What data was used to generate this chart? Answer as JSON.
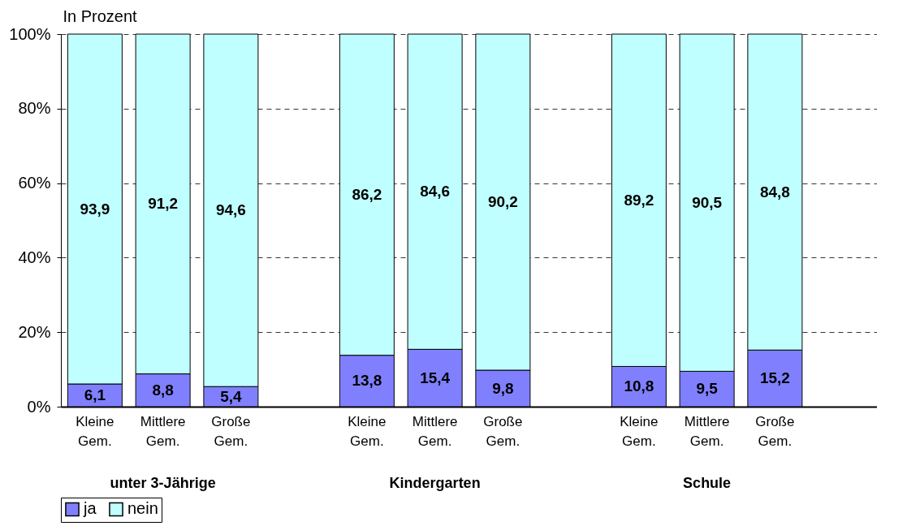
{
  "chart_data": {
    "type": "bar",
    "stacked": true,
    "ylabel": "In Prozent",
    "categories": [
      "Kleine Gem.",
      "Mittlere Gem.",
      "Große Gem.",
      null,
      "Kleine Gem.",
      "Mittlere Gem.",
      "Große Gem.",
      null,
      "Kleine Gem.",
      "Mittlere Gem.",
      "Große Gem.",
      null
    ],
    "series": [
      {
        "name": "ja",
        "color": "#8080ff",
        "values": [
          6.1,
          8.8,
          5.4,
          null,
          13.8,
          15.4,
          9.8,
          null,
          10.8,
          9.5,
          15.2,
          null
        ],
        "value_labels": [
          "6,1",
          "8,8",
          "5,4",
          null,
          "13,8",
          "15,4",
          "9,8",
          null,
          "10,8",
          "9,5",
          "15,2",
          null
        ]
      },
      {
        "name": "nein",
        "color": "#c0ffff",
        "values": [
          93.9,
          91.2,
          94.6,
          null,
          86.2,
          84.6,
          90.2,
          null,
          89.2,
          90.5,
          84.8,
          null
        ],
        "value_labels": [
          "93,9",
          "91,2",
          "94,6",
          null,
          "86,2",
          "84,6",
          "90,2",
          null,
          "89,2",
          "90,5",
          "84,8",
          null
        ]
      }
    ],
    "ylim": [
      0,
      100
    ],
    "yticks": [
      {
        "value": 0,
        "label": "0%"
      },
      {
        "value": 20,
        "label": "20%"
      },
      {
        "value": 40,
        "label": "40%"
      },
      {
        "value": 60,
        "label": "60%"
      },
      {
        "value": 80,
        "label": "80%"
      },
      {
        "value": 100,
        "label": "100%"
      }
    ],
    "grid": "y",
    "legend": "bottom",
    "annotations": [
      "unter 3-Jährige",
      "Kindergarten",
      "Schule"
    ]
  }
}
